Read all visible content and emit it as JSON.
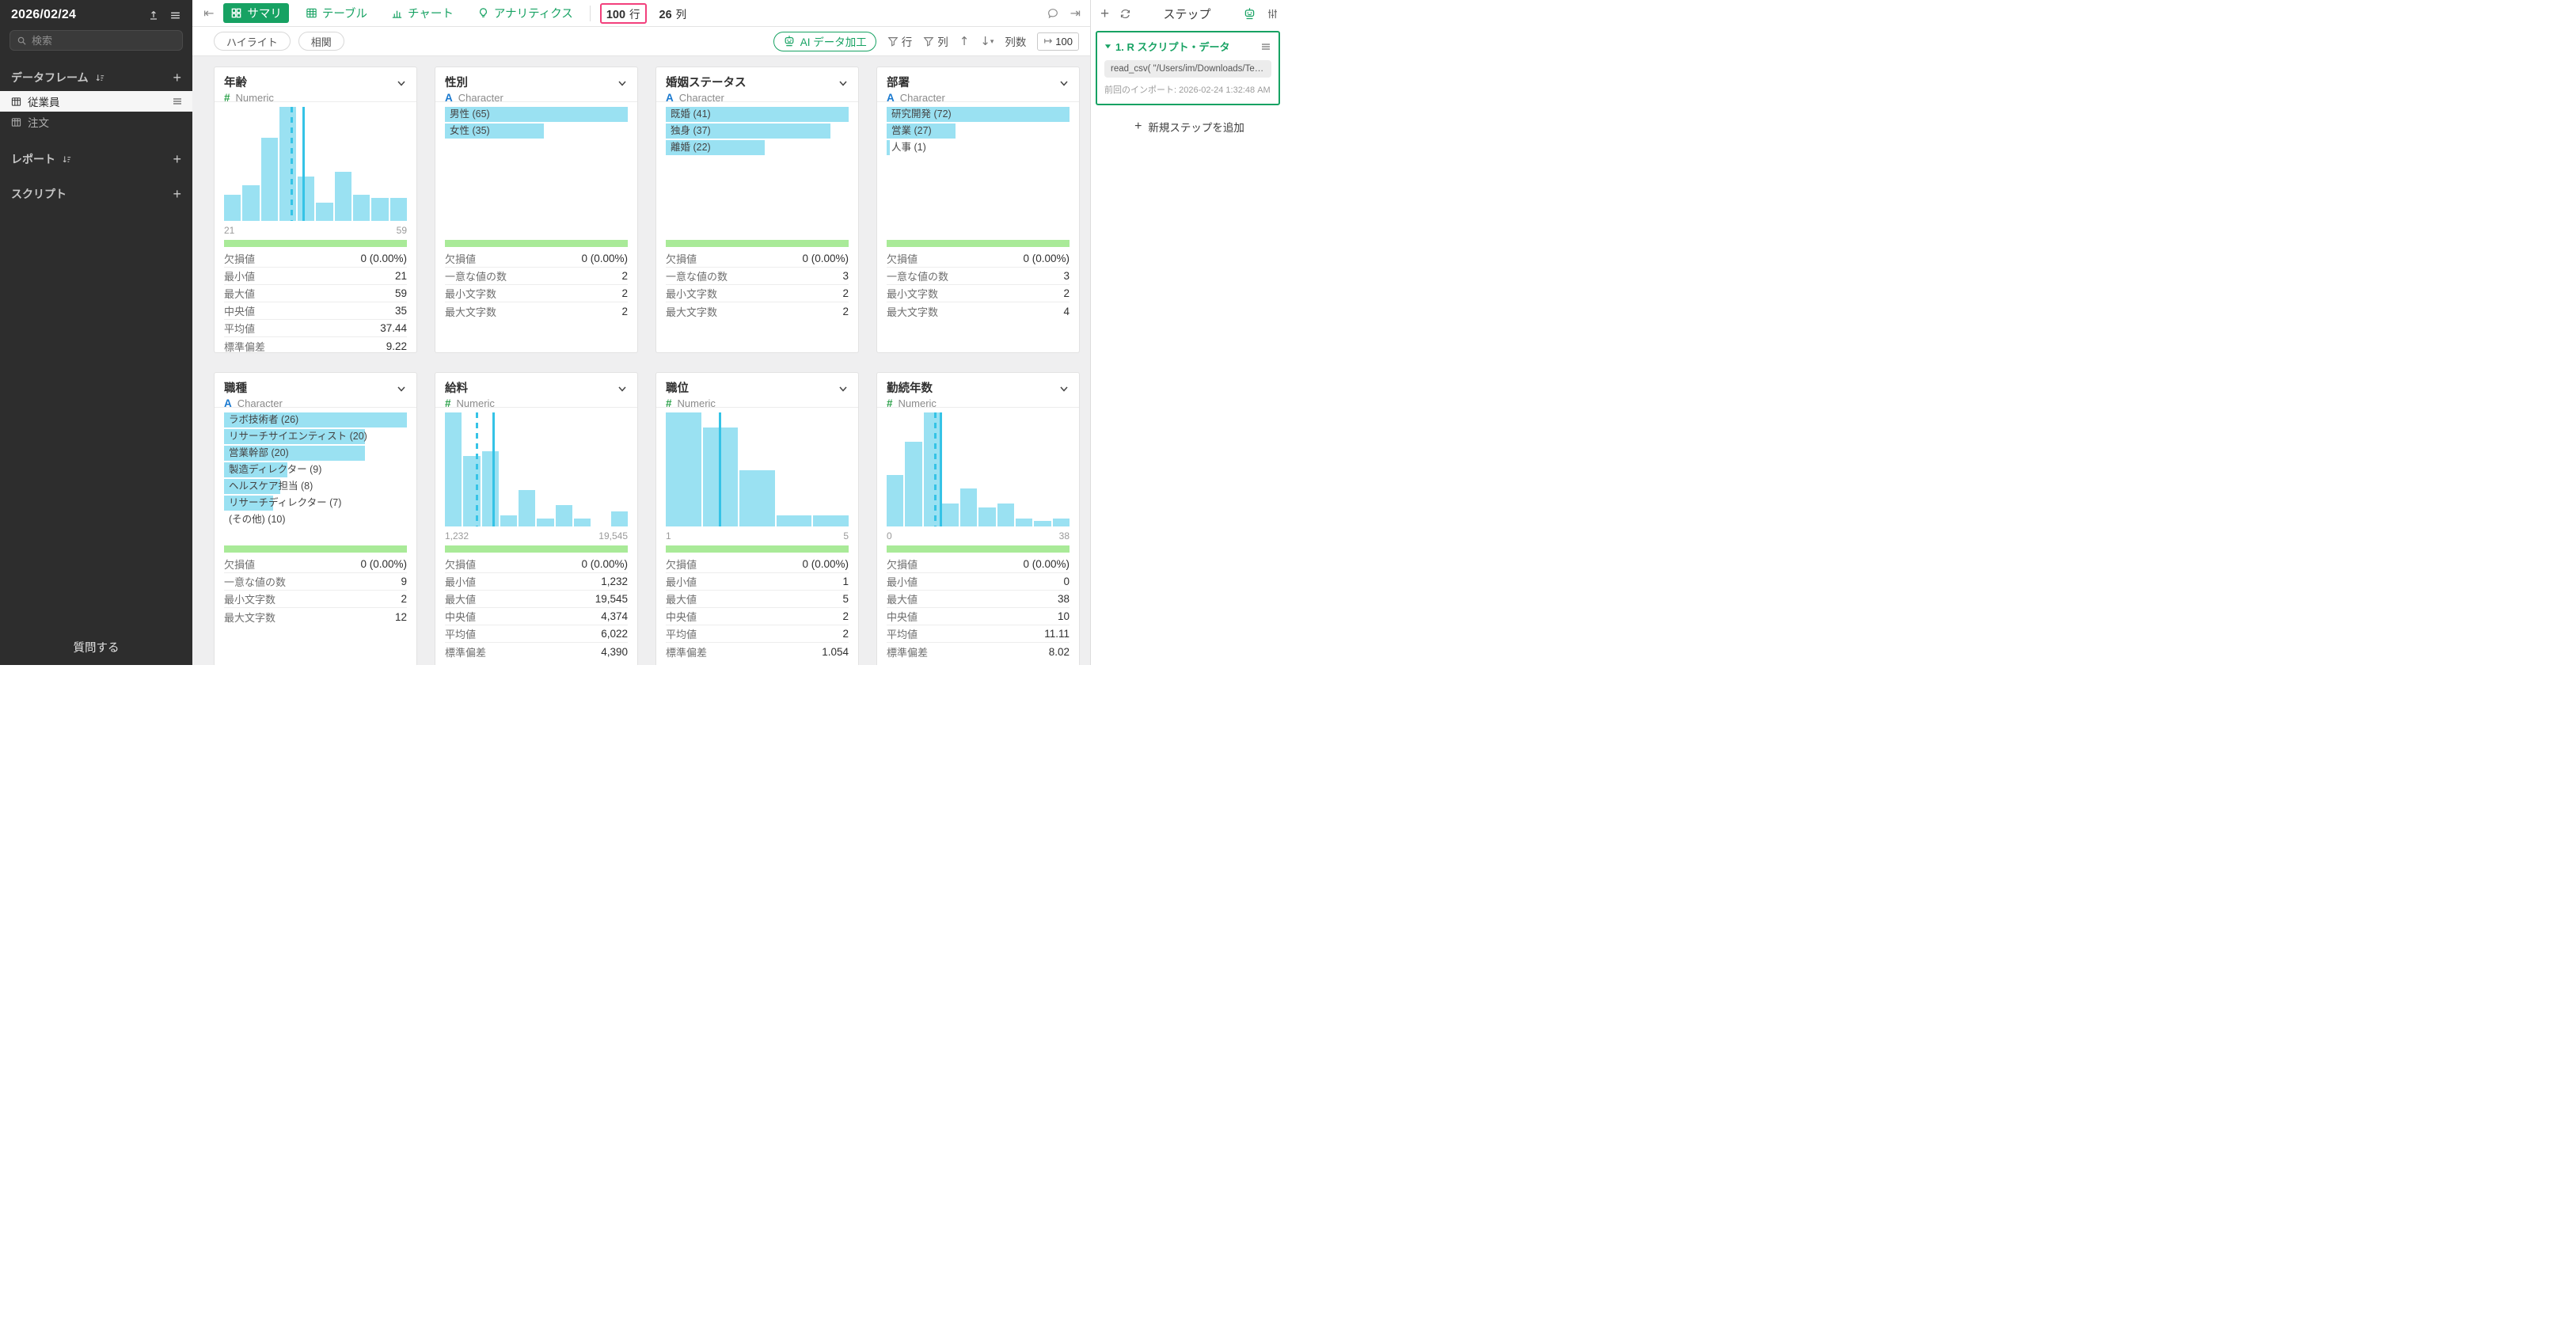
{
  "colors": {
    "accent_green": "#17a263",
    "bar_blue": "#9ae1f2",
    "line_cyan": "#35c3e6",
    "valid_green": "#a9ea98",
    "highlight_pink": "#f2407c",
    "character_blue": "#1878cf"
  },
  "sidebar": {
    "title": "2026/02/24",
    "search_placeholder": "検索",
    "dataframes_label": "データフレーム",
    "items": [
      {
        "label": "従業員",
        "active": true
      },
      {
        "label": "注文",
        "active": false
      }
    ],
    "reports_label": "レポート",
    "scripts_label": "スクリプト",
    "ask_label": "質問する"
  },
  "topbar": {
    "tabs": [
      {
        "label": "サマリ",
        "active": true
      },
      {
        "label": "テーブル",
        "active": false
      },
      {
        "label": "チャート",
        "active": false
      },
      {
        "label": "アナリティクス",
        "active": false
      }
    ],
    "rows_value": "100",
    "rows_unit": "行",
    "cols_value": "26",
    "cols_unit": "列"
  },
  "subbar": {
    "highlight": "ハイライト",
    "correlation": "相関",
    "ai": "AI データ加工",
    "rows_filter": "行",
    "cols_filter": "列",
    "colnum_label": "列数",
    "colnum_value": "100"
  },
  "panel": {
    "title": "ステップ",
    "step_title": "1. R スクリプト・データ",
    "step_code": "read_csv( \"/Users/im/Downloads/Te…",
    "step_meta": "前回のインポート: 2026-02-24 1:32:48 AM",
    "add_step": "新規ステップを追加"
  },
  "cards": [
    {
      "id": "age",
      "title": "年齢",
      "type": "Numeric",
      "histogram": {
        "bars": [
          0.23,
          0.31,
          0.73,
          1,
          0.39,
          0.16,
          0.43,
          0.23,
          0.2,
          0.2
        ],
        "min": "21",
        "max": "59",
        "median_pos": 0.365,
        "mean_pos": 0.43
      },
      "stats": [
        {
          "label": "欠損値",
          "value": "0 (0.00%)"
        },
        {
          "label": "最小値",
          "value": "21"
        },
        {
          "label": "最大値",
          "value": "59"
        },
        {
          "label": "中央値",
          "value": "35"
        },
        {
          "label": "平均値",
          "value": "37.44"
        },
        {
          "label": "標準偏差",
          "value": "9.22"
        }
      ]
    },
    {
      "id": "gender",
      "title": "性別",
      "type": "Character",
      "categories": [
        {
          "label": "男性 (65)",
          "w": 1
        },
        {
          "label": "女性 (35)",
          "w": 0.54
        }
      ],
      "stats": [
        {
          "label": "欠損値",
          "value": "0 (0.00%)"
        },
        {
          "label": "一意な値の数",
          "value": "2"
        },
        {
          "label": "最小文字数",
          "value": "2"
        },
        {
          "label": "最大文字数",
          "value": "2"
        }
      ]
    },
    {
      "id": "marital-status",
      "title": "婚姻ステータス",
      "type": "Character",
      "categories": [
        {
          "label": "既婚 (41)",
          "w": 1
        },
        {
          "label": "独身 (37)",
          "w": 0.9
        },
        {
          "label": "離婚 (22)",
          "w": 0.54
        }
      ],
      "stats": [
        {
          "label": "欠損値",
          "value": "0 (0.00%)"
        },
        {
          "label": "一意な値の数",
          "value": "3"
        },
        {
          "label": "最小文字数",
          "value": "2"
        },
        {
          "label": "最大文字数",
          "value": "2"
        }
      ]
    },
    {
      "id": "department",
      "title": "部署",
      "type": "Character",
      "categories": [
        {
          "label": "研究開発 (72)",
          "w": 1
        },
        {
          "label": "営業 (27)",
          "w": 0.375
        },
        {
          "label": "人事 (1)",
          "w": 0.016
        }
      ],
      "stats": [
        {
          "label": "欠損値",
          "value": "0 (0.00%)"
        },
        {
          "label": "一意な値の数",
          "value": "3"
        },
        {
          "label": "最小文字数",
          "value": "2"
        },
        {
          "label": "最大文字数",
          "value": "4"
        }
      ]
    },
    {
      "id": "job-role",
      "title": "職種",
      "type": "Character",
      "categories": [
        {
          "label": "ラボ技術者 (26)",
          "w": 1
        },
        {
          "label": "リサーチサイエンティスト (20)",
          "w": 0.77
        },
        {
          "label": "営業幹部 (20)",
          "w": 0.77
        },
        {
          "label": "製造ディレクター (9)",
          "w": 0.346
        },
        {
          "label": "ヘルスケア担当 (8)",
          "w": 0.308
        },
        {
          "label": "リサーチディレクター (7)",
          "w": 0.269
        },
        {
          "label": "(その他) (10)",
          "w": 0
        }
      ],
      "stats": [
        {
          "label": "欠損値",
          "value": "0 (0.00%)"
        },
        {
          "label": "一意な値の数",
          "value": "9"
        },
        {
          "label": "最小文字数",
          "value": "2"
        },
        {
          "label": "最大文字数",
          "value": "12"
        }
      ]
    },
    {
      "id": "salary",
      "title": "給料",
      "type": "Numeric",
      "histogram": {
        "bars": [
          1,
          0.62,
          0.66,
          0.1,
          0.32,
          0.07,
          0.19,
          0.07,
          0,
          0.13
        ],
        "min": "1,232",
        "max": "19,545",
        "median_pos": 0.17,
        "mean_pos": 0.26
      },
      "stats": [
        {
          "label": "欠損値",
          "value": "0 (0.00%)"
        },
        {
          "label": "最小値",
          "value": "1,232"
        },
        {
          "label": "最大値",
          "value": "19,545"
        },
        {
          "label": "中央値",
          "value": "4,374"
        },
        {
          "label": "平均値",
          "value": "6,022"
        },
        {
          "label": "標準偏差",
          "value": "4,390"
        }
      ]
    },
    {
      "id": "job-level",
      "title": "職位",
      "type": "Numeric",
      "histogram": {
        "bars": [
          1,
          0.87,
          0.49,
          0.1,
          0.1
        ],
        "min": "1",
        "max": "5",
        "median_pos": null,
        "mean_pos": 0.29
      },
      "stats": [
        {
          "label": "欠損値",
          "value": "0 (0.00%)"
        },
        {
          "label": "最小値",
          "value": "1"
        },
        {
          "label": "最大値",
          "value": "5"
        },
        {
          "label": "中央値",
          "value": "2"
        },
        {
          "label": "平均値",
          "value": "2"
        },
        {
          "label": "標準偏差",
          "value": "1.054"
        }
      ]
    },
    {
      "id": "years-at-company",
      "title": "勤続年数",
      "type": "Numeric",
      "histogram": {
        "bars": [
          0.45,
          0.74,
          1,
          0.2,
          0.33,
          0.17,
          0.2,
          0.07,
          0.05,
          0.07
        ],
        "min": "0",
        "max": "38",
        "median_pos": 0.26,
        "mean_pos": 0.29
      },
      "stats": [
        {
          "label": "欠損値",
          "value": "0 (0.00%)"
        },
        {
          "label": "最小値",
          "value": "0"
        },
        {
          "label": "最大値",
          "value": "38"
        },
        {
          "label": "中央値",
          "value": "10"
        },
        {
          "label": "平均値",
          "value": "11.11"
        },
        {
          "label": "標準偏差",
          "value": "8.02"
        }
      ]
    }
  ]
}
